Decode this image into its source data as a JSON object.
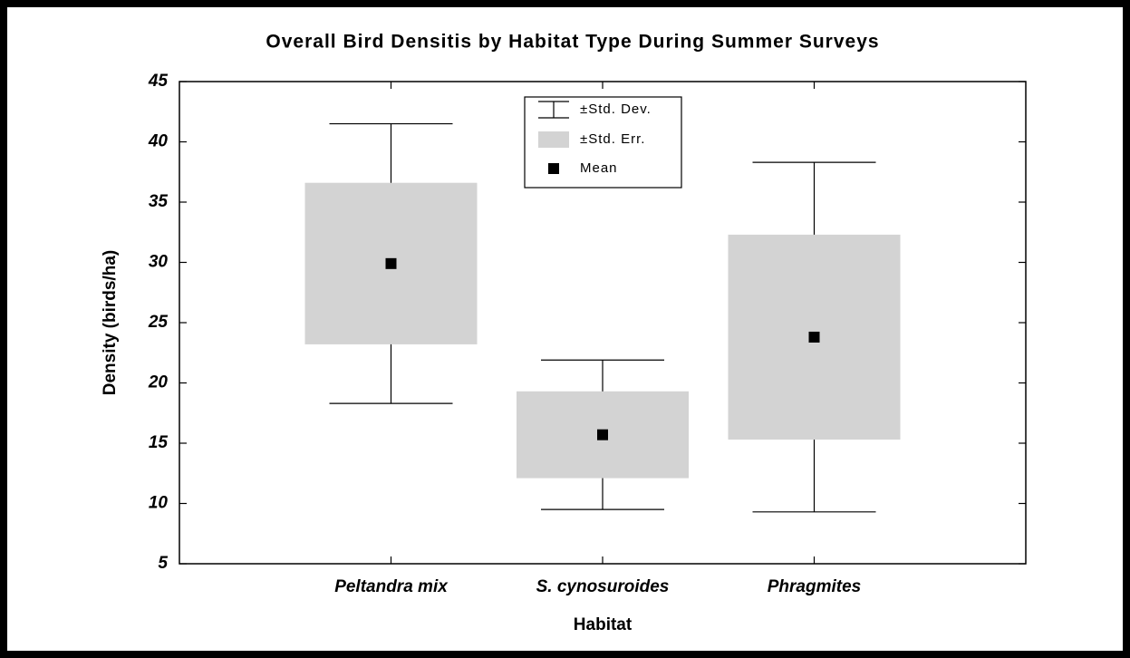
{
  "chart_data": {
    "type": "error_box",
    "title": "Overall Bird Densitis by Habitat Type During Summer Surveys",
    "x_label": "Habitat",
    "y_label": "Density (birds/ha)",
    "categories": [
      "Peltandra mix",
      "S. cynosuroides",
      "Phragmites"
    ],
    "series": [
      {
        "name": "±Std. Dev.",
        "color": "#000000",
        "values": [
          11.6,
          6.2,
          14.5
        ]
      },
      {
        "name": "±Std. Err.",
        "color": "#d3d3d3",
        "values": [
          6.7,
          3.6,
          8.5
        ]
      },
      {
        "name": "Mean",
        "color": "#000000",
        "values": [
          29.9,
          15.7,
          23.8
        ]
      }
    ],
    "ylim": [
      5,
      45
    ],
    "yticks": [
      5,
      10,
      15,
      20,
      25,
      30,
      35,
      40,
      45
    ],
    "legend_position": "top"
  }
}
